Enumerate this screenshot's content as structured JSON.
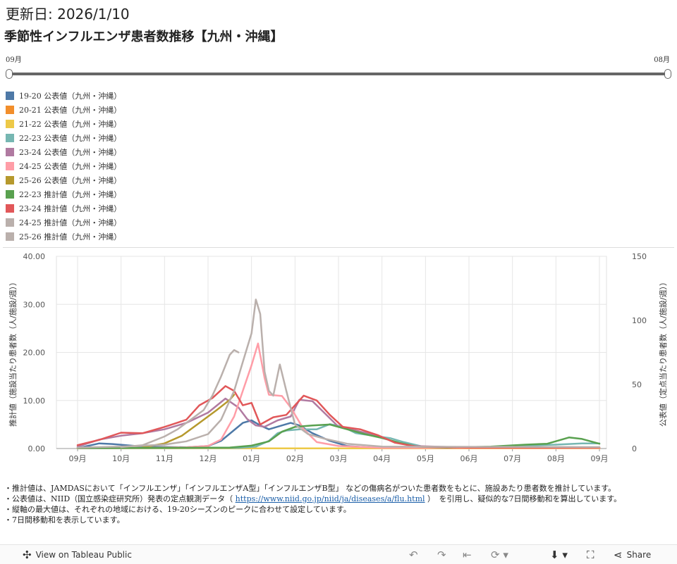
{
  "header": {
    "updated": "更新日: 2026/1/10",
    "title": "季節性インフルエンザ患者数推移【九州・沖縄】"
  },
  "slider": {
    "min_label": "09月",
    "max_label": "08月"
  },
  "legend": [
    {
      "label": "19-20 公表値（九州・沖縄）",
      "color": "#4e79a7"
    },
    {
      "label": "20-21 公表値（九州・沖縄）",
      "color": "#f28e2b"
    },
    {
      "label": "21-22 公表値（九州・沖縄）",
      "color": "#edc948"
    },
    {
      "label": "22-23 公表値（九州・沖縄）",
      "color": "#76b7b2"
    },
    {
      "label": "23-24 公表値（九州・沖縄）",
      "color": "#b07aa1"
    },
    {
      "label": "24-25 公表値（九州・沖縄）",
      "color": "#ff9da7"
    },
    {
      "label": "25-26 公表値（九州・沖縄）",
      "color": "#b6992d"
    },
    {
      "label": "22-23 推計値（九州・沖縄）",
      "color": "#59a14f"
    },
    {
      "label": "23-24 推計値（九州・沖縄）",
      "color": "#e15759"
    },
    {
      "label": "24-25 推計値（九州・沖縄）",
      "color": "#bab0ac"
    },
    {
      "label": "25-26 推計値（九州・沖縄）",
      "color": "#bab0ac"
    }
  ],
  "chart_data": {
    "type": "line",
    "categories": [
      "09月",
      "10月",
      "11月",
      "12月",
      "01月",
      "02月",
      "03月",
      "04月",
      "05月",
      "06月",
      "07月",
      "08月",
      "09月"
    ],
    "y_left": {
      "label": "推計値（施設当たり患者数（人/施設/週））",
      "ticks": [
        "0.00",
        "10.00",
        "20.00",
        "30.00",
        "40.00"
      ],
      "range": [
        0,
        40
      ]
    },
    "y_right": {
      "label": "公表値（定点当たり患者数（人/施設/週））",
      "ticks": [
        "0",
        "50",
        "100",
        "150"
      ],
      "range": [
        0,
        150
      ]
    },
    "grid": true,
    "series": [
      {
        "name": "19-20 公表値（九州・沖縄）",
        "color": "#4e79a7",
        "axis": "right",
        "values": [
          [
            0,
            0.3
          ],
          [
            0.5,
            4
          ],
          [
            0.8,
            3.5
          ],
          [
            1.5,
            1.5
          ],
          [
            2.5,
            1
          ],
          [
            3,
            2
          ],
          [
            3.3,
            6
          ],
          [
            3.8,
            20
          ],
          [
            4,
            22
          ],
          [
            4.2,
            18
          ],
          [
            4.4,
            15
          ],
          [
            4.7,
            18
          ],
          [
            4.9,
            20
          ],
          [
            5.1,
            18
          ],
          [
            5.4,
            12
          ],
          [
            5.8,
            6
          ],
          [
            6.2,
            2
          ],
          [
            6.8,
            0.5
          ],
          [
            7.5,
            0.2
          ],
          [
            12,
            0.2
          ]
        ]
      },
      {
        "name": "20-21 公表値（九州・沖縄）",
        "color": "#f28e2b",
        "axis": "right",
        "values": [
          [
            0,
            0.1
          ],
          [
            12,
            0.1
          ]
        ]
      },
      {
        "name": "21-22 公表値（九州・沖縄）",
        "color": "#edc948",
        "axis": "right",
        "values": [
          [
            0,
            0.1
          ],
          [
            12,
            0.1
          ]
        ]
      },
      {
        "name": "22-23 公表値（九州・沖縄）",
        "color": "#76b7b2",
        "axis": "right",
        "values": [
          [
            0,
            0.2
          ],
          [
            3.7,
            0.5
          ],
          [
            4.1,
            1.5
          ],
          [
            4.4,
            6
          ],
          [
            4.6,
            12
          ],
          [
            4.8,
            14
          ],
          [
            5.1,
            15
          ],
          [
            5.5,
            15
          ],
          [
            5.8,
            19
          ],
          [
            6.1,
            17
          ],
          [
            6.4,
            12
          ],
          [
            6.8,
            10
          ],
          [
            7.2,
            8
          ],
          [
            7.5,
            5
          ],
          [
            8,
            1
          ],
          [
            9.5,
            1
          ],
          [
            10,
            2
          ],
          [
            11,
            3
          ],
          [
            11.6,
            4
          ],
          [
            12,
            4
          ]
        ]
      },
      {
        "name": "23-24 公表値（九州・沖縄）",
        "color": "#b07aa1",
        "axis": "right",
        "values": [
          [
            0,
            1.5
          ],
          [
            0.5,
            7
          ],
          [
            1,
            10
          ],
          [
            1.5,
            12
          ],
          [
            2,
            15
          ],
          [
            2.5,
            20
          ],
          [
            3,
            28
          ],
          [
            3.4,
            39
          ],
          [
            3.7,
            32
          ],
          [
            3.9,
            23
          ],
          [
            4.1,
            18
          ],
          [
            4.3,
            17
          ],
          [
            4.6,
            22
          ],
          [
            4.9,
            25
          ],
          [
            5.1,
            38
          ],
          [
            5.4,
            37
          ],
          [
            5.7,
            27
          ],
          [
            6,
            17
          ],
          [
            6.4,
            14
          ],
          [
            6.9,
            10
          ],
          [
            7.3,
            5
          ],
          [
            7.7,
            2
          ],
          [
            8.5,
            1.2
          ],
          [
            10,
            0.8
          ],
          [
            12,
            0.6
          ]
        ]
      },
      {
        "name": "24-25 公表値（九州・沖縄）",
        "color": "#ff9da7",
        "axis": "right",
        "values": [
          [
            0,
            0.3
          ],
          [
            1.5,
            0.6
          ],
          [
            2.5,
            1
          ],
          [
            3,
            2
          ],
          [
            3.3,
            7
          ],
          [
            3.6,
            25
          ],
          [
            3.8,
            45
          ],
          [
            4,
            65
          ],
          [
            4.15,
            82
          ],
          [
            4.3,
            55
          ],
          [
            4.4,
            42
          ],
          [
            4.7,
            41
          ],
          [
            4.9,
            32
          ],
          [
            5.2,
            15
          ],
          [
            5.5,
            5
          ],
          [
            6,
            2
          ],
          [
            7,
            0.5
          ],
          [
            12,
            0.4
          ]
        ]
      },
      {
        "name": "25-26 公表値（九州・沖縄）",
        "color": "#b6992d",
        "axis": "right",
        "values": [
          [
            1.5,
            1
          ],
          [
            2,
            4
          ],
          [
            2.4,
            10
          ],
          [
            2.8,
            20
          ],
          [
            3.2,
            30
          ],
          [
            3.5,
            38
          ],
          [
            3.6,
            42
          ]
        ]
      },
      {
        "name": "22-23 推計値（九州・沖縄）",
        "color": "#59a14f",
        "axis": "left",
        "values": [
          [
            0,
            0.1
          ],
          [
            3.5,
            0.2
          ],
          [
            4,
            0.6
          ],
          [
            4.4,
            1.5
          ],
          [
            4.7,
            3.5
          ],
          [
            5,
            4.5
          ],
          [
            5.4,
            4.8
          ],
          [
            5.8,
            5
          ],
          [
            6.2,
            4
          ],
          [
            6.6,
            3
          ],
          [
            7,
            2.2
          ],
          [
            7.4,
            1.2
          ],
          [
            7.8,
            0.4
          ],
          [
            8.5,
            0.2
          ],
          [
            9.5,
            0.4
          ],
          [
            10.3,
            0.8
          ],
          [
            10.8,
            1
          ],
          [
            11.3,
            2.3
          ],
          [
            11.6,
            2
          ],
          [
            12,
            1
          ]
        ]
      },
      {
        "name": "23-24 推計値（九州・沖縄）",
        "color": "#e15759",
        "axis": "left",
        "values": [
          [
            0,
            0.7
          ],
          [
            0.5,
            1.8
          ],
          [
            1,
            3.3
          ],
          [
            1.5,
            3.2
          ],
          [
            2,
            4.5
          ],
          [
            2.5,
            6
          ],
          [
            2.8,
            9
          ],
          [
            3.1,
            10.5
          ],
          [
            3.4,
            13
          ],
          [
            3.6,
            12
          ],
          [
            3.8,
            9
          ],
          [
            4,
            9.5
          ],
          [
            4.2,
            5
          ],
          [
            4.5,
            6.5
          ],
          [
            4.8,
            7
          ],
          [
            5,
            9
          ],
          [
            5.2,
            11
          ],
          [
            5.5,
            10
          ],
          [
            5.8,
            7
          ],
          [
            6.1,
            4.5
          ],
          [
            6.5,
            4
          ],
          [
            6.9,
            2.8
          ],
          [
            7.3,
            1.2
          ],
          [
            7.8,
            0.4
          ],
          [
            9,
            0.2
          ],
          [
            12,
            0.2
          ]
        ]
      },
      {
        "name": "24-25 推計値（九州・沖縄）",
        "color": "#bab0ac",
        "axis": "left",
        "values": [
          [
            0,
            0.2
          ],
          [
            1,
            0.4
          ],
          [
            2,
            0.8
          ],
          [
            2.5,
            1.5
          ],
          [
            3,
            3
          ],
          [
            3.3,
            6
          ],
          [
            3.6,
            12
          ],
          [
            3.8,
            18
          ],
          [
            4,
            24
          ],
          [
            4.1,
            31
          ],
          [
            4.2,
            28
          ],
          [
            4.3,
            16
          ],
          [
            4.4,
            12
          ],
          [
            4.5,
            11
          ],
          [
            4.65,
            17.5
          ],
          [
            4.8,
            12
          ],
          [
            5,
            5
          ],
          [
            5.3,
            3
          ],
          [
            5.7,
            2
          ],
          [
            6.2,
            1
          ],
          [
            7,
            0.4
          ],
          [
            12,
            0.3
          ]
        ]
      },
      {
        "name": "25-26 推計値（九州・沖縄）",
        "color": "#bab0ac",
        "axis": "left",
        "values": [
          [
            1,
            0.3
          ],
          [
            1.5,
            0.7
          ],
          [
            2,
            2.5
          ],
          [
            2.3,
            4
          ],
          [
            2.6,
            6
          ],
          [
            2.9,
            8
          ],
          [
            3.1,
            11
          ],
          [
            3.3,
            15
          ],
          [
            3.5,
            19.5
          ],
          [
            3.6,
            20.5
          ],
          [
            3.7,
            20
          ]
        ]
      }
    ]
  },
  "notes": {
    "line1": "・推計値は、JAMDASにおいて「インフルエンザ」「インフルエンザA型」「インフルエンザB型」 などの傷病名がついた患者数をもとに、施設あたり患者数を推計しています。",
    "line2_pre": "・公表値は、NIID（国立感染症研究所）発表の定点観測データ（ ",
    "line2_link": "https://www.niid.go.jp/niid/ja/diseases/a/flu.html",
    "line2_post": " ）　を引用し、疑似的な7日間移動和を算出しています。",
    "line3": "・縦軸の最大値は、それぞれの地域における、19-20シーズンのピークに合わせて設定しています。",
    "line4": "・7日間移動和を表示しています。"
  },
  "toolbar": {
    "view_label": "View on Tableau Public",
    "share_label": "Share"
  }
}
